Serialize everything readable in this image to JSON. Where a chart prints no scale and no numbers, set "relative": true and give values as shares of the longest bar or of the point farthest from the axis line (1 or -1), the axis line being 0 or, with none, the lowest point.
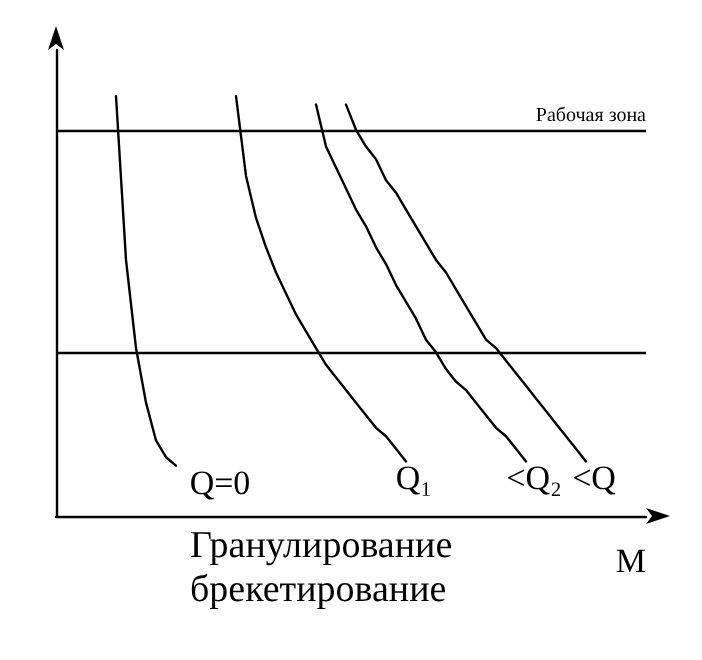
{
  "chart_data": {
    "type": "line",
    "relative": true,
    "xlabel": "M",
    "annotations": [
      "Гранулирование\nбрекетирование"
    ],
    "line_style": "solid",
    "categories": [
      null,
      null,
      null,
      null,
      null,
      null,
      null,
      null,
      null,
      null,
      null,
      null,
      null,
      null,
      null,
      null,
      null,
      null,
      null,
      null,
      null,
      null,
      null,
      null,
      null,
      null,
      null,
      null,
      null,
      null,
      null,
      null,
      null,
      null,
      null,
      null,
      null,
      null,
      null,
      null,
      null,
      null,
      null,
      null,
      null,
      null,
      null,
      null,
      null,
      null,
      null,
      null,
      null,
      null,
      null,
      null,
      null,
      null,
      null,
      null
    ],
    "series": [
      {
        "name": "Q=0",
        "color": "#000000",
        "values": [
          null,
          null,
          null,
          null,
          null,
          null,
          1.0,
          0.61,
          0.4,
          0.27,
          0.18,
          0.14,
          0.12,
          null,
          null,
          null,
          null,
          null,
          null,
          null,
          null,
          null,
          null,
          null,
          null,
          null,
          null,
          null,
          null,
          null,
          null,
          null,
          null,
          null,
          null,
          null,
          null,
          null,
          null,
          null,
          null,
          null,
          null,
          null,
          null,
          null,
          null,
          null,
          null,
          null,
          null,
          null,
          null,
          null,
          null,
          null,
          null,
          null,
          null,
          null
        ]
      },
      {
        "name": "Q₁",
        "color": "#000000",
        "values": [
          null,
          null,
          null,
          null,
          null,
          null,
          null,
          null,
          null,
          null,
          null,
          null,
          null,
          null,
          null,
          null,
          null,
          null,
          1.0,
          0.81,
          0.71,
          0.64,
          0.58,
          0.53,
          0.48,
          0.44,
          0.4,
          0.36,
          0.33,
          0.3,
          0.27,
          0.24,
          0.21,
          0.19,
          0.16,
          0.13,
          null,
          null,
          null,
          null,
          null,
          null,
          null,
          null,
          null,
          null,
          null,
          null,
          null,
          null,
          null,
          null,
          null,
          null,
          null,
          null,
          null,
          null,
          null,
          null
        ]
      },
      {
        "name": "<Q₂",
        "color": "#000000",
        "values": [
          null,
          null,
          null,
          null,
          null,
          null,
          null,
          null,
          null,
          null,
          null,
          null,
          null,
          null,
          null,
          null,
          null,
          null,
          null,
          null,
          null,
          null,
          null,
          null,
          null,
          null,
          0.98,
          0.88,
          0.83,
          0.78,
          0.73,
          0.69,
          0.64,
          0.6,
          0.55,
          0.51,
          0.47,
          0.42,
          0.39,
          0.35,
          0.32,
          0.3,
          0.27,
          0.24,
          0.21,
          0.19,
          0.16,
          0.13,
          null,
          null,
          null,
          null,
          null,
          null,
          null,
          null,
          null,
          null,
          null,
          null
        ]
      },
      {
        "name": "<Q",
        "color": "#000000",
        "values": [
          null,
          null,
          null,
          null,
          null,
          null,
          null,
          null,
          null,
          null,
          null,
          null,
          null,
          null,
          null,
          null,
          null,
          null,
          null,
          null,
          null,
          null,
          null,
          null,
          null,
          null,
          null,
          null,
          null,
          0.98,
          0.92,
          0.88,
          0.85,
          0.8,
          0.77,
          0.73,
          0.69,
          0.65,
          0.61,
          0.58,
          0.54,
          0.5,
          0.46,
          0.42,
          0.4,
          0.37,
          0.34,
          0.31,
          0.28,
          0.25,
          0.22,
          0.19,
          0.16,
          0.13,
          null,
          null,
          null,
          null,
          null,
          null
        ]
      }
    ],
    "ref_lines": [
      {
        "axis": "y",
        "value": 0.92,
        "label": "Рабочая зона",
        "color": "#000000"
      },
      {
        "axis": "y",
        "value": 0.39,
        "color": "#000000"
      }
    ]
  }
}
